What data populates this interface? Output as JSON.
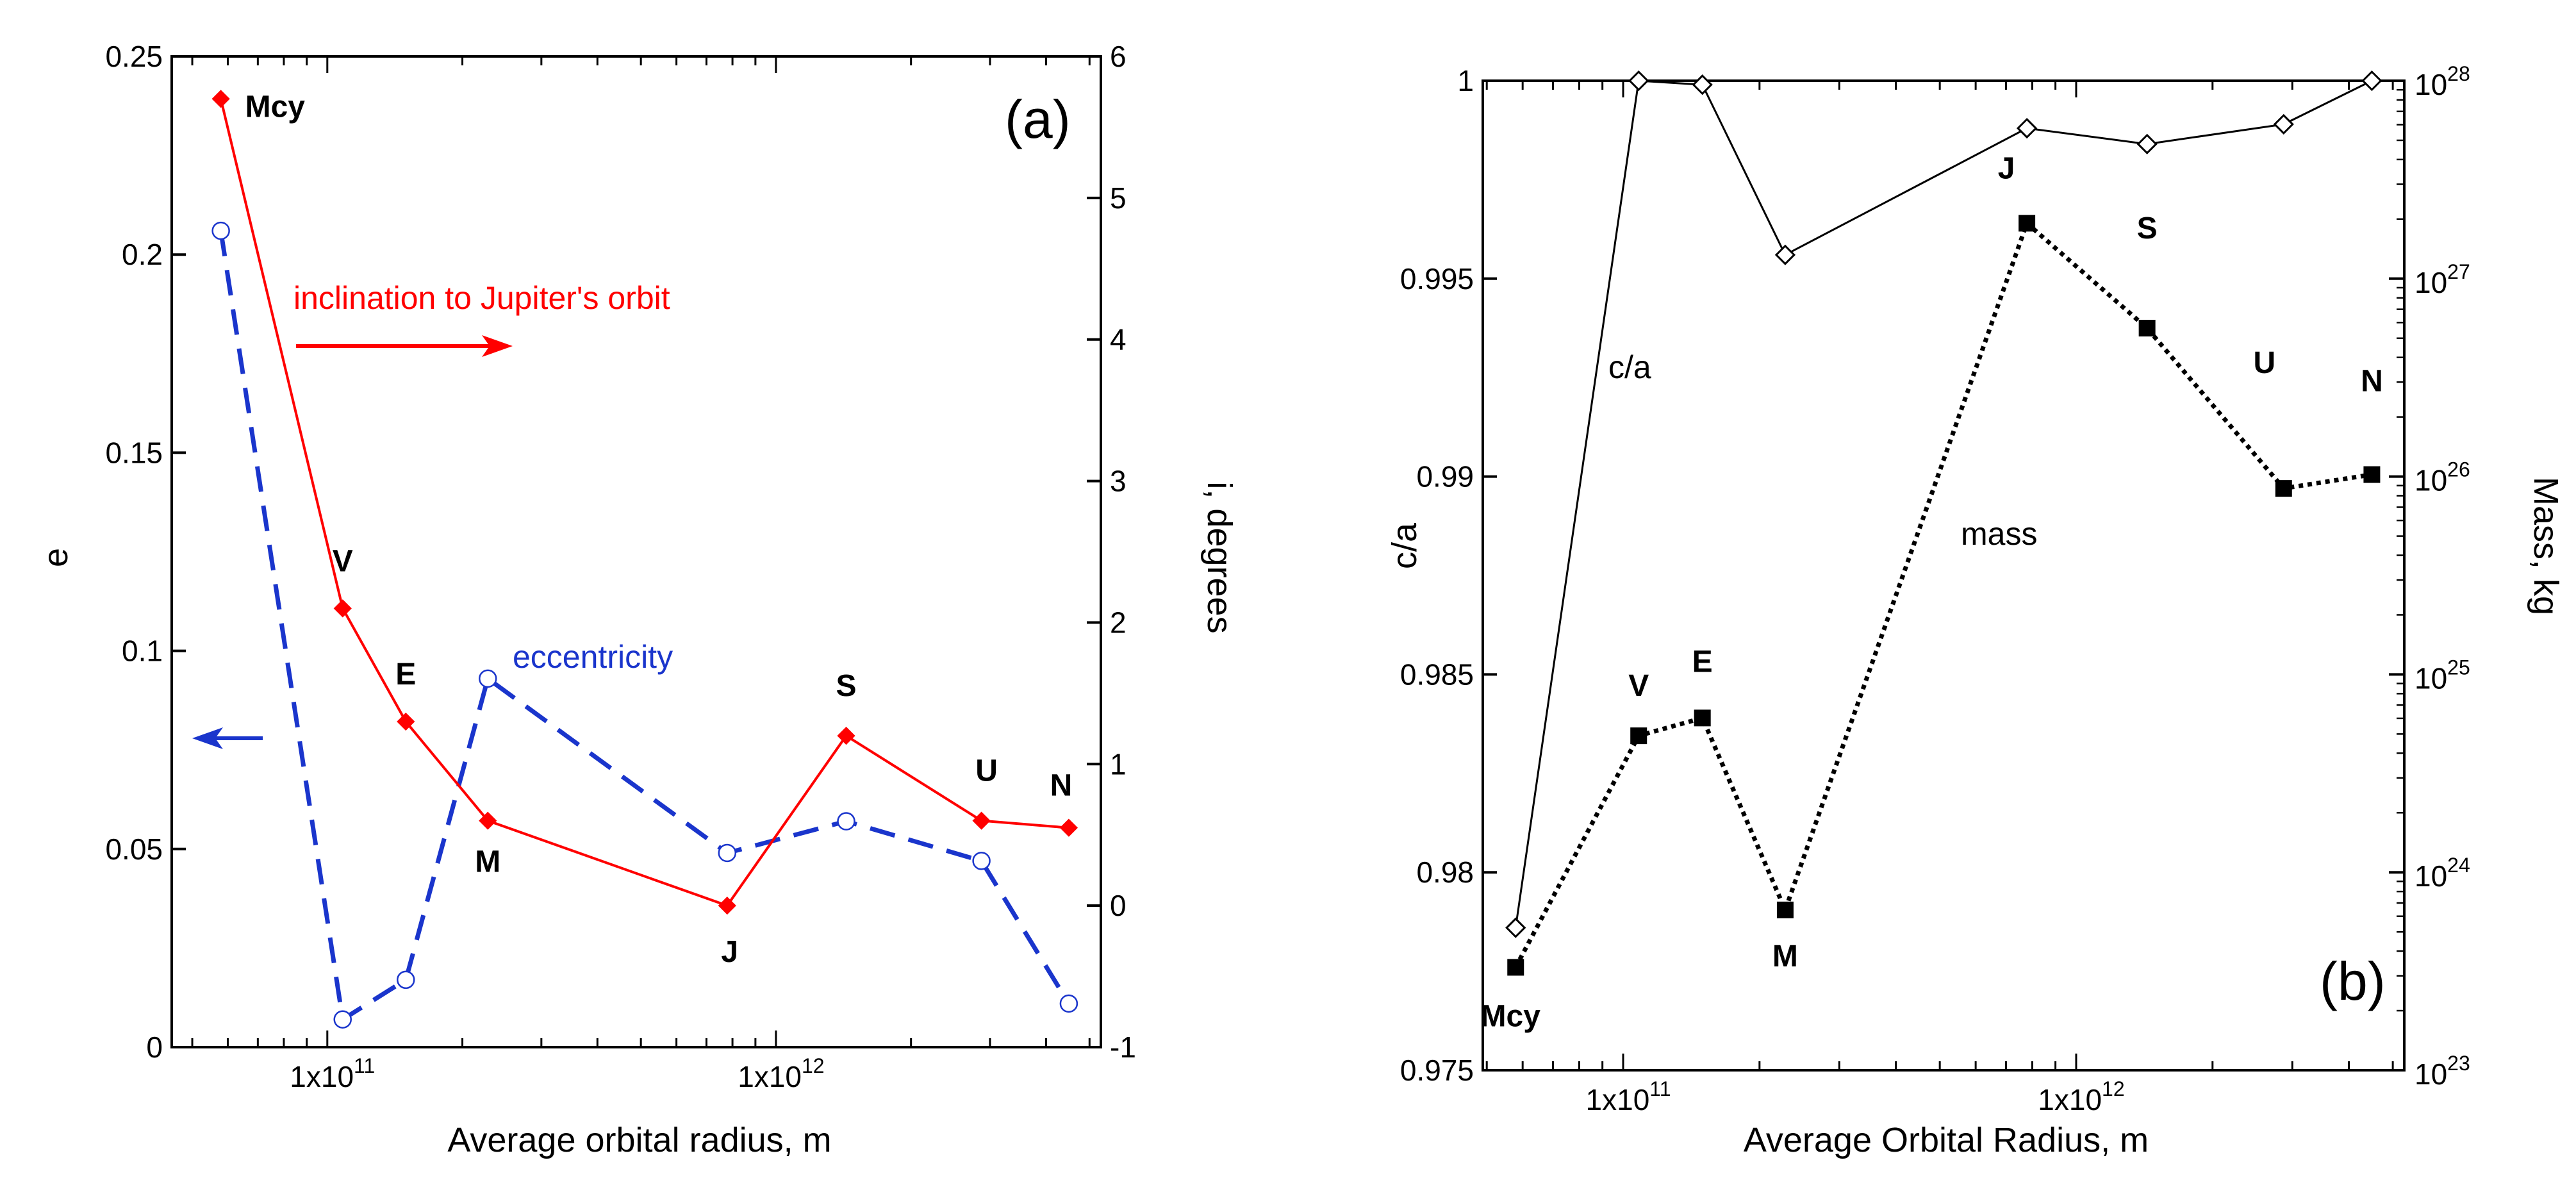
{
  "colors": {
    "inclination": "#ff0000",
    "eccentricity": "#1a35cc",
    "axis": "#000000"
  },
  "chart_data": [
    {
      "type": "line",
      "panel": "(a)",
      "xscale": "log",
      "xlim": [
        45000000000.0,
        5300000000000.0
      ],
      "xticks": [
        {
          "value": 100000000000.0,
          "label": "1x10",
          "exp": "11"
        },
        {
          "value": 1000000000000.0,
          "label": "1x10",
          "exp": "12"
        }
      ],
      "xlabel": "Average orbital radius, m",
      "ylabel_left": "e",
      "ylabel_right": "i, degrees",
      "ylim_left": [
        0,
        0.25
      ],
      "ylim_right": [
        -1,
        6
      ],
      "yticks_left": [
        "0",
        "0.05",
        "0.1",
        "0.15",
        "0.2",
        "0.25"
      ],
      "yticks_left_values": [
        0,
        0.05,
        0.1,
        0.15,
        0.2,
        0.25
      ],
      "yticks_right": [
        "-1",
        "0",
        "1",
        "2",
        "3",
        "4",
        "5",
        "6"
      ],
      "yticks_right_values": [
        -1,
        0,
        1,
        2,
        3,
        4,
        5,
        6
      ],
      "point_labels": [
        "Mcy",
        "V",
        "E",
        "M",
        "J",
        "S",
        "U",
        "N"
      ],
      "x": [
        57900000000.0,
        108200000000.0,
        149600000000.0,
        227900000000.0,
        778500000000.0,
        1434000000000.0,
        2871000000000.0,
        4495000000000.0
      ],
      "series": [
        {
          "name": "inclination to Jupiter's orbit",
          "axis": "right",
          "style": "solid",
          "marker": "filled-diamond",
          "color": "#ff0000",
          "values": [
            5.7,
            2.1,
            1.3,
            0.6,
            0.0,
            1.2,
            0.6,
            0.55
          ]
        },
        {
          "name": "eccentricity",
          "axis": "left",
          "style": "dashed",
          "marker": "open-circle",
          "color": "#1a35cc",
          "values": [
            0.206,
            0.007,
            0.017,
            0.093,
            0.049,
            0.057,
            0.047,
            0.011
          ]
        }
      ],
      "annotations": {
        "inclination_label": "inclination to Jupiter's orbit",
        "eccentricity_label": "eccentricity",
        "panel_label": "(a)"
      }
    },
    {
      "type": "line",
      "panel": "(b)",
      "xscale": "log",
      "xlim": [
        49000000000.0,
        5300000000000.0
      ],
      "xticks": [
        {
          "value": 100000000000.0,
          "label": "1x10",
          "exp": "11"
        },
        {
          "value": 1000000000000.0,
          "label": "1x10",
          "exp": "12"
        }
      ],
      "xlabel": "Average Orbital Radius, m",
      "ylabel_left": "c/a",
      "ylabel_right": "Mass, kg",
      "ylim_left": [
        0.975,
        1.0
      ],
      "ylim_right_log10": [
        23,
        28
      ],
      "yticks_left": [
        "0.975",
        "0.98",
        "0.985",
        "0.99",
        "0.995",
        "1"
      ],
      "yticks_left_values": [
        0.975,
        0.98,
        0.985,
        0.99,
        0.995,
        1.0
      ],
      "yticks_right": [
        {
          "base": "10",
          "exp": "23"
        },
        {
          "base": "10",
          "exp": "24"
        },
        {
          "base": "10",
          "exp": "25"
        },
        {
          "base": "10",
          "exp": "26"
        },
        {
          "base": "10",
          "exp": "27"
        },
        {
          "base": "10",
          "exp": "28"
        }
      ],
      "yticks_right_values": [
        23,
        24,
        25,
        26,
        27,
        28
      ],
      "point_labels": [
        "Mcy",
        "V",
        "E",
        "M",
        "J",
        "S",
        "U",
        "N"
      ],
      "x": [
        57900000000.0,
        108200000000.0,
        149600000000.0,
        227900000000.0,
        778500000000.0,
        1434000000000.0,
        2871000000000.0,
        4495000000000.0
      ],
      "series": [
        {
          "name": "c/a",
          "axis": "left",
          "style": "solid",
          "marker": "open-diamond",
          "color": "#000000",
          "values": [
            0.9786,
            1.0,
            0.9999,
            0.9956,
            0.9988,
            0.9984,
            0.9989,
            1.0
          ]
        },
        {
          "name": "mass",
          "axis": "right",
          "style": "dotted",
          "marker": "filled-square",
          "color": "#000000",
          "values_log10": [
            23.52,
            24.69,
            24.78,
            23.81,
            27.28,
            26.75,
            25.94,
            26.01
          ]
        }
      ],
      "annotations": {
        "ca_label": "c/a",
        "mass_label": "mass",
        "panel_label": "(b)"
      }
    }
  ]
}
